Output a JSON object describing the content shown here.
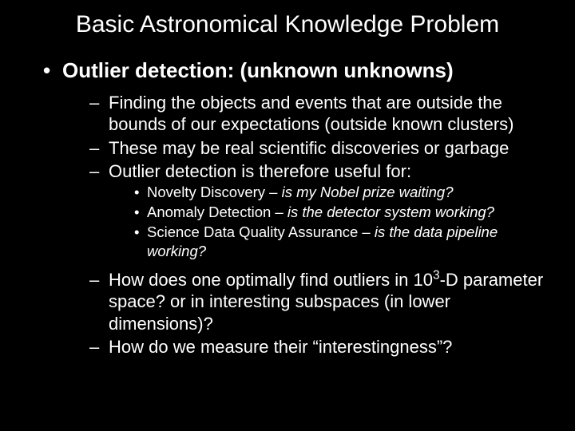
{
  "colors": {
    "background": "#000000",
    "text": "#ffffff"
  },
  "typography": {
    "title_fontsize": 30,
    "l1_fontsize": 26,
    "l2_fontsize": 22,
    "l3_fontsize": 18.5,
    "font_family": "Arial"
  },
  "title": "Basic Astronomical Knowledge Problem",
  "l1": {
    "item0": "Outlier detection: (unknown unknowns)"
  },
  "l2a": {
    "item0": "Finding the objects and events that are outside the bounds of our expectations (outside known clusters)",
    "item1": "These may be real scientific discoveries or garbage",
    "item2": "Outlier detection is therefore useful for:"
  },
  "l3": {
    "item0_label": "Novelty Discovery – ",
    "item0_em": "is my Nobel prize waiting?",
    "item1_label": "Anomaly Detection – ",
    "item1_em": "is the detector system working?",
    "item2_label": "Science Data Quality Assurance – ",
    "item2_em": "is the data pipeline working?"
  },
  "l2b": {
    "item0_pre": "How does one optimally find outliers in 10",
    "item0_sup": "3",
    "item0_post": "-D parameter space?  or in interesting subspaces (in lower dimensions)?",
    "item1": "How do we measure their “interestingness”?"
  }
}
